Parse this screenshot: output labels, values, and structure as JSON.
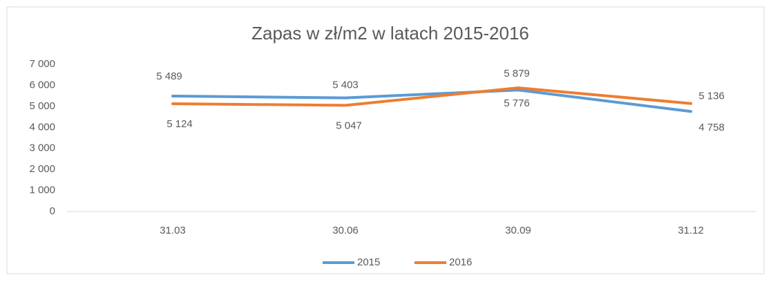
{
  "chart_data": {
    "type": "line",
    "title": "Zapas w zł/m2 w latach 2015-2016",
    "categories": [
      "31.03",
      "30.06",
      "30.09",
      "31.12"
    ],
    "series": [
      {
        "name": "2015",
        "color": "#5b9bd5",
        "values": [
          5489,
          5403,
          5776,
          4758
        ],
        "value_labels": [
          "5 489",
          "5 403",
          "5 776",
          "4 758"
        ]
      },
      {
        "name": "2016",
        "color": "#ed7d31",
        "values": [
          5124,
          5047,
          5879,
          5136
        ],
        "value_labels": [
          "5 124",
          "5 047",
          "5 879",
          "5 136"
        ]
      }
    ],
    "ylim": [
      0,
      7000
    ],
    "yticks": [
      {
        "value": 0,
        "label": "0"
      },
      {
        "value": 1000,
        "label": "1 000"
      },
      {
        "value": 2000,
        "label": "2 000"
      },
      {
        "value": 3000,
        "label": "3 000"
      },
      {
        "value": 4000,
        "label": "4 000"
      },
      {
        "value": 5000,
        "label": "5 000"
      },
      {
        "value": 6000,
        "label": "6 000"
      },
      {
        "value": 7000,
        "label": "7 000"
      }
    ],
    "legend": "bottom"
  }
}
